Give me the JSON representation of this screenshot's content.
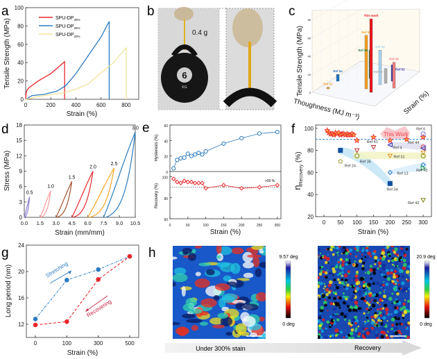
{
  "panels": {
    "a": {
      "letter": "a"
    },
    "b": {
      "letter": "b",
      "weight_label": "0.4 g",
      "kettlebell_label": "6",
      "kettlebell_unit": "KG"
    },
    "c": {
      "letter": "c"
    },
    "d": {
      "letter": "d"
    },
    "e": {
      "letter": "e"
    },
    "f": {
      "letter": "f"
    },
    "g": {
      "letter": "g"
    },
    "h": {
      "letter": "h",
      "left_caption": "Under 300% stain",
      "right_caption": "Recovery",
      "left_scale_max": "9.57 deg",
      "left_scale_min": "0 deg",
      "right_scale_max": "20.9 deg",
      "right_scale_min": "0 deg"
    }
  },
  "colors": {
    "red": "#e8262b",
    "blue": "#2b7bc0",
    "yellow": "#f3e6a0",
    "dashed_line": "#3a8fd8",
    "this_work": "#f55"
  },
  "chart_data": [
    {
      "id": "a",
      "type": "line",
      "xlabel": "Strain (%)",
      "ylabel": "Tensile Strength (MPa)",
      "xlim": [
        0,
        900
      ],
      "ylim": [
        0,
        100
      ],
      "xticks": [
        0,
        200,
        400,
        600,
        800
      ],
      "yticks": [
        0,
        20,
        40,
        60,
        80,
        100
      ],
      "legend": "top-left",
      "grid": false,
      "series": [
        {
          "name": "SPU-DP30%",
          "name_main": "SPU-DP",
          "name_sub": "30%",
          "color": "#e8262b",
          "x": [
            0,
            3,
            10,
            30,
            100,
            200,
            310,
            310
          ],
          "y": [
            0,
            6,
            10,
            13,
            20,
            28,
            41,
            0
          ]
        },
        {
          "name": "SPU-DP25%",
          "name_main": "SPU-DP",
          "name_sub": "25%",
          "color": "#2b7bc0",
          "x": [
            0,
            50,
            150,
            250,
            320,
            400,
            500,
            600,
            665,
            665
          ],
          "y": [
            0,
            4,
            5.5,
            9,
            15,
            28,
            48,
            68,
            85,
            0
          ]
        },
        {
          "name": "SPU-DP20%",
          "name_main": "SPU-DP",
          "name_sub": "20%",
          "color": "#f0e39a",
          "x": [
            0,
            100,
            300,
            400,
            500,
            600,
            700,
            760,
            800,
            800
          ],
          "y": [
            0,
            3,
            7,
            11,
            17,
            29,
            40,
            50,
            56,
            0
          ]
        }
      ]
    },
    {
      "id": "c",
      "type": "bar3d",
      "xlabel": "Thoughness (MJ m⁻³)",
      "ylabel": "Tensile Strength (MPa)",
      "zlabel": "Strain (%)",
      "zlim": [
        0,
        90
      ],
      "zticks": [
        0,
        20,
        40,
        60,
        80
      ],
      "bars": [
        {
          "label": "Ref 51",
          "value": 2,
          "color": "#f0a030"
        },
        {
          "label": "Ref 54",
          "value": 8,
          "color": "#1f6fc0"
        },
        {
          "label": "Ref 55",
          "value": 62,
          "color": "#f0a020"
        },
        {
          "label": "Ref 56",
          "value": 33,
          "color": "#1e7a3a"
        },
        {
          "label": "This work",
          "value": 85,
          "color": "#e8161b"
        },
        {
          "label": "Ref 52",
          "value": 40,
          "color": "#a8d4f0"
        },
        {
          "label": "Ref 50",
          "value": 17,
          "color": "#b0b0b0"
        },
        {
          "label": "Ref 53",
          "value": 19,
          "color": "#3a3aa0"
        },
        {
          "label": "Ref 49",
          "value": 30,
          "color": "#f08080"
        }
      ]
    },
    {
      "id": "d",
      "type": "line",
      "xlabel": "Strain (mm/mm)",
      "ylabel": "Stress (MPa)",
      "xlim": [
        0,
        10.5
      ],
      "ylim": [
        0,
        18
      ],
      "xticks": [
        0.0,
        1.5,
        3.0,
        4.5,
        6.0,
        7.5,
        9.0,
        10.5
      ],
      "xtick_labels": [
        "0.0",
        "1.5",
        "3.0",
        "4.5",
        "6.0",
        "7.5",
        "9.0",
        "10.5"
      ],
      "yticks": [
        0,
        3,
        6,
        9,
        12,
        15,
        18
      ],
      "loops": [
        {
          "label": "0.5",
          "start": 0.0,
          "end": 0.5,
          "peak": 4.0,
          "residual": 0.1,
          "color": "#8a7fd0"
        },
        {
          "label": "1.0",
          "start": 1.5,
          "end": 2.5,
          "peak": 5.2,
          "residual": 0.15,
          "color": "#f59a9a"
        },
        {
          "label": "1.5",
          "start": 3.0,
          "end": 4.5,
          "peak": 7.0,
          "residual": 0.2,
          "color": "#a0522d"
        },
        {
          "label": "2.0",
          "start": 4.5,
          "end": 6.5,
          "peak": 9.0,
          "residual": 0.25,
          "color": "#e8262b"
        },
        {
          "label": "2.5",
          "start": 6.0,
          "end": 8.5,
          "peak": 9.6,
          "residual": 0.3,
          "color": "#f5a623"
        },
        {
          "label": "3.0",
          "start": 7.5,
          "end": 10.5,
          "peak": 16.6,
          "residual": 0.3,
          "color": "#2b7bc0"
        }
      ]
    },
    {
      "id": "e",
      "type": "line",
      "xlabel": "Strain (%)",
      "xlim": [
        0,
        310
      ],
      "xticks": [
        0,
        50,
        100,
        150,
        200,
        250,
        300
      ],
      "series": [
        {
          "name": "Hysteresis",
          "ylabel": "Hysteresis (%)",
          "ylim": [
            0,
            60
          ],
          "yticks": [
            0,
            20,
            40,
            60
          ],
          "color": "#2b7bc0",
          "marker": "circle",
          "x": [
            10,
            20,
            30,
            40,
            50,
            60,
            70,
            80,
            90,
            100,
            150,
            200,
            250,
            300
          ],
          "y": [
            4,
            15,
            17,
            18,
            23,
            20,
            22,
            24,
            22,
            26,
            36,
            43,
            49,
            51
          ]
        },
        {
          "name": "Recovery",
          "ylabel": "Recovery (%)",
          "ylim": [
            60,
            105
          ],
          "yticks": [
            60,
            80,
            100
          ],
          "color": "#e8262b",
          "marker": "diamond",
          "x": [
            10,
            20,
            30,
            40,
            50,
            60,
            70,
            80,
            90,
            100,
            150,
            200,
            250,
            300
          ],
          "y": [
            98,
            95,
            94,
            96,
            95,
            95,
            94,
            94,
            94,
            89,
            92,
            89,
            90,
            92
          ]
        }
      ],
      "reference_line": 90,
      "annotation": ">90 %"
    },
    {
      "id": "f",
      "type": "scatter",
      "xlabel": "Strain (%)",
      "ylabel_main": "η",
      "ylabel_sub": "Recovery",
      "ylabel_unit": " (%)",
      "xlim": [
        -25,
        325
      ],
      "ylim": [
        20,
        103
      ],
      "xticks": [
        0,
        50,
        100,
        150,
        200,
        250,
        300
      ],
      "yticks": [
        20,
        40,
        60,
        80,
        100
      ],
      "reference_line": 90,
      "this_work_label": "This Work",
      "this_work": {
        "x": [
          10,
          15,
          20,
          25,
          30,
          35,
          40,
          45,
          50,
          55,
          60,
          65,
          70,
          75,
          80,
          85,
          90,
          100,
          150,
          200,
          250,
          300
        ],
        "y": [
          98,
          96,
          95,
          95,
          94,
          96,
          95,
          96,
          94,
          95,
          95,
          94,
          95,
          94,
          94,
          95,
          94,
          89,
          92,
          89,
          90,
          92
        ]
      },
      "refs": [
        {
          "label": "Ref 6",
          "marker": "circle",
          "color": "#7070d0",
          "x": [
            300
          ],
          "y": [
            95
          ]
        },
        {
          "label": "Ref 44",
          "marker": "circle",
          "color": "#e03030",
          "x": [
            300
          ],
          "y": [
            83
          ]
        },
        {
          "label": "Ref 4",
          "marker": "tri-left",
          "color": "#3030b0",
          "x": [
            200,
            300
          ],
          "y": [
            85,
            82
          ]
        },
        {
          "label": "Ref 41",
          "marker": "tri-down",
          "color": "#c03030",
          "x": [
            100,
            150
          ],
          "y": [
            80,
            83
          ]
        },
        {
          "label": "Ref 31",
          "marker": "tri-down",
          "color": "#e09020",
          "x": [
            200,
            300
          ],
          "y": [
            75,
            78
          ]
        },
        {
          "label": "Ref 35",
          "marker": "circle",
          "color": "#8a8a20",
          "x": [
            100,
            300
          ],
          "y": [
            75,
            75
          ]
        },
        {
          "label": "Ref 24",
          "marker": "pentagon",
          "color": "#a0a030",
          "x": [
            50
          ],
          "y": [
            70
          ]
        },
        {
          "label": "Ref 13",
          "marker": "diamond",
          "color": "#3080d0",
          "x": [
            200,
            300
          ],
          "y": [
            60,
            67
          ]
        },
        {
          "label": "Ref 43",
          "marker": "tri-right",
          "color": "#20a040",
          "x": [
            300
          ],
          "y": [
            64
          ]
        },
        {
          "label": "Ref 34",
          "marker": "square",
          "color": "#1050a0",
          "x": [
            50,
            200
          ],
          "y": [
            80,
            50
          ]
        },
        {
          "label": "Ref 42",
          "marker": "tri-down",
          "color": "#808010",
          "x": [
            300
          ],
          "y": [
            35
          ]
        }
      ]
    },
    {
      "id": "g",
      "type": "line",
      "xlabel": "Strain (%)",
      "ylabel": "Long period (nm)",
      "categories": [
        "0",
        "100",
        "300",
        "500"
      ],
      "ylim": [
        10,
        24
      ],
      "yticks": [
        12,
        16,
        20,
        24
      ],
      "series": [
        {
          "name": "Stretching",
          "color": "#2b7bc0",
          "values": [
            12.8,
            18.7,
            20.3,
            22.3
          ]
        },
        {
          "name": "Recovering",
          "color": "#e8262b",
          "values": [
            11.9,
            12.4,
            18.8,
            22.3
          ]
        }
      ]
    }
  ]
}
